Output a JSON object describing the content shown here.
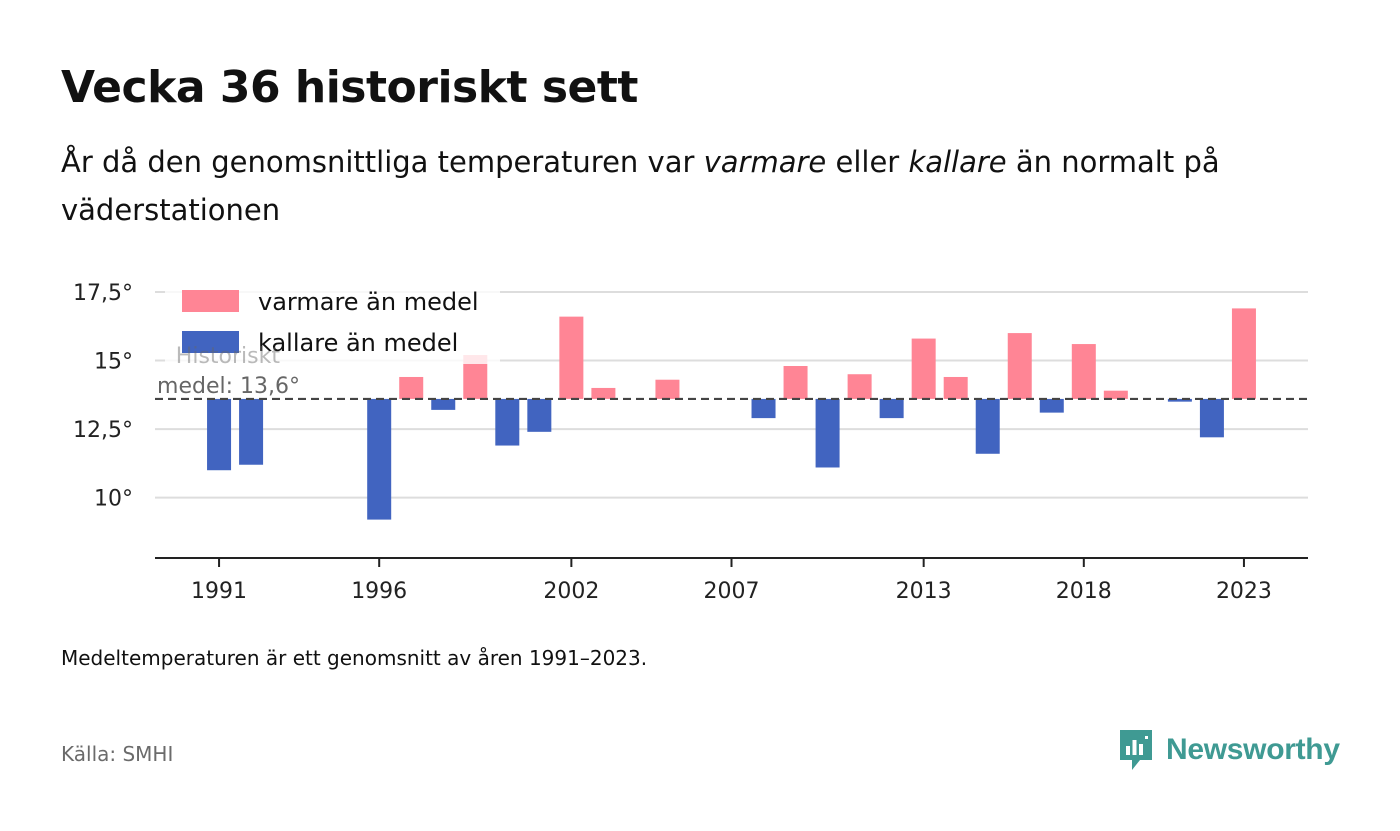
{
  "title": "Vecka 36 historiskt sett",
  "subtitle": {
    "part1": "År då den genomsnittliga temperaturen var ",
    "warm_word": "varmare",
    "part2": " eller ",
    "cold_word": "kallare",
    "part3": " än normalt på väderstationen"
  },
  "footnote": "Medeltemperaturen är ett genomsnitt av åren 1991–2023.",
  "source": "Källa: SMHI",
  "brand": "Newsworthy",
  "colors": {
    "warm": "#ff8595",
    "cold": "#4164c0",
    "grid": "#dddddd",
    "baseline": "#444444",
    "axis": "#222222",
    "brand": "#3f9a93"
  },
  "chart_data": {
    "type": "bar",
    "baseline": 13.6,
    "ylim": [
      7.8,
      18.3
    ],
    "yticks": [
      10,
      12.5,
      15,
      17.5
    ],
    "ytick_labels": [
      "10°",
      "12,5°",
      "15°",
      "17,5°"
    ],
    "xlim": [
      1989.0,
      2025.0
    ],
    "xticks": [
      1991,
      1996,
      2002,
      2007,
      2013,
      2018,
      2023
    ],
    "xtick_labels": [
      "1991",
      "1996",
      "2002",
      "2007",
      "2013",
      "2018",
      "2023"
    ],
    "legend": [
      {
        "label": "varmare än medel",
        "color_key": "warm"
      },
      {
        "label": "kallare än medel",
        "color_key": "cold"
      }
    ],
    "legend_placement": "top-left",
    "annotation": {
      "line1": "Historiskt",
      "line2": "medel: 13,6°"
    },
    "grid": true,
    "years": [
      1991,
      1992,
      1993,
      1994,
      1995,
      1996,
      1997,
      1998,
      1999,
      2000,
      2001,
      2002,
      2003,
      2004,
      2005,
      2006,
      2007,
      2008,
      2009,
      2010,
      2011,
      2012,
      2013,
      2014,
      2015,
      2016,
      2017,
      2018,
      2019,
      2020,
      2021,
      2022,
      2023
    ],
    "values": [
      11.0,
      11.2,
      null,
      null,
      null,
      9.2,
      14.4,
      13.2,
      15.2,
      11.9,
      12.4,
      16.6,
      14.0,
      null,
      14.3,
      null,
      null,
      12.9,
      14.8,
      11.1,
      14.5,
      12.9,
      15.8,
      14.4,
      11.6,
      16.0,
      13.1,
      15.6,
      13.9,
      null,
      13.5,
      12.2,
      16.9
    ]
  }
}
